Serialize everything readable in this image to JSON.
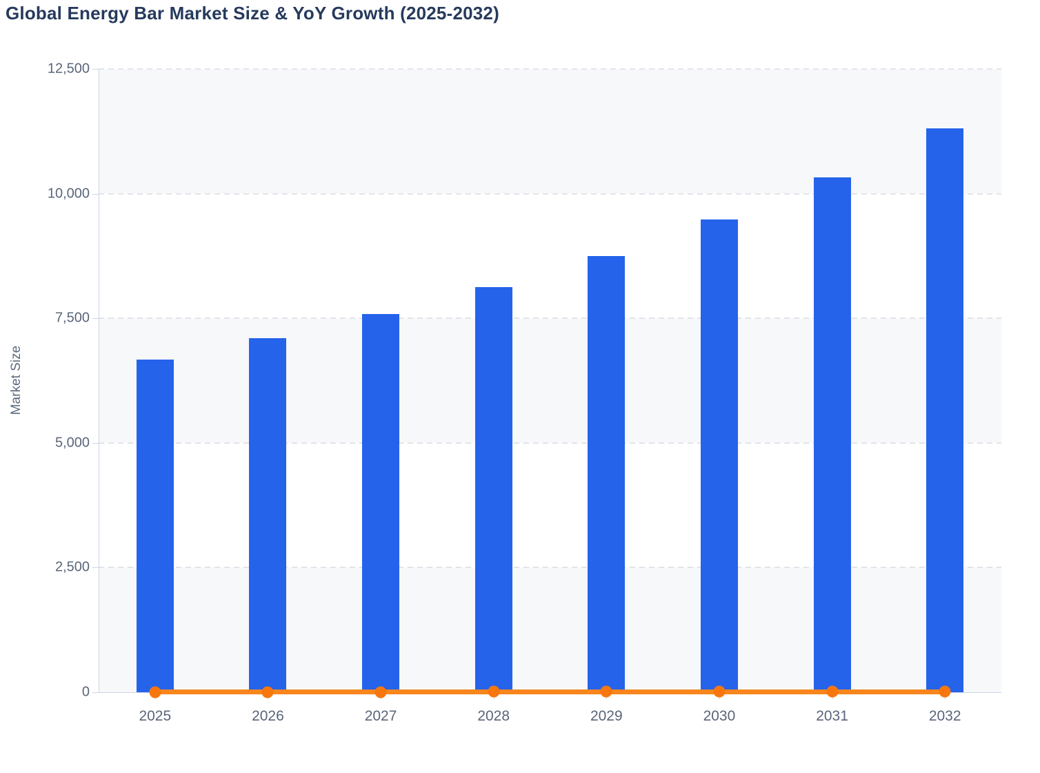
{
  "page": {
    "title": "Global Energy Bar Market Size & YoY Growth (2025-2032)"
  },
  "chart_data": {
    "type": "bar",
    "title": "Global Energy Bar Market Size & YoY Growth (2025-2032)",
    "categories": [
      "2025",
      "2026",
      "2027",
      "2028",
      "2029",
      "2030",
      "2031",
      "2032"
    ],
    "series": [
      {
        "name": "Market Size",
        "type": "bar",
        "color": "#2563eb",
        "values": [
          6670,
          7100,
          7590,
          8130,
          8750,
          9480,
          10330,
          11310
        ]
      },
      {
        "name": "YoY Growth",
        "type": "line",
        "color": "#f8861d",
        "marker_color": "#f7770e",
        "values": [
          0,
          6.4,
          6.9,
          7.1,
          7.6,
          8.3,
          9.0,
          9.5
        ]
      }
    ],
    "xlabel": "",
    "ylabel": "Market Size",
    "ylim": [
      0,
      12500
    ],
    "yticks": [
      0,
      2500,
      5000,
      7500,
      10000,
      12500
    ],
    "ytick_labels": [
      "0",
      "2,500",
      "5,000",
      "7,500",
      "10,000",
      "12,500"
    ],
    "grid": "horizontal-dashed",
    "legend": "none",
    "plot_band_colors": [
      "#f6f8fa",
      "#ffffff"
    ],
    "axis_color": "#ccd4e4",
    "tick_label_color": "#5a657a"
  }
}
